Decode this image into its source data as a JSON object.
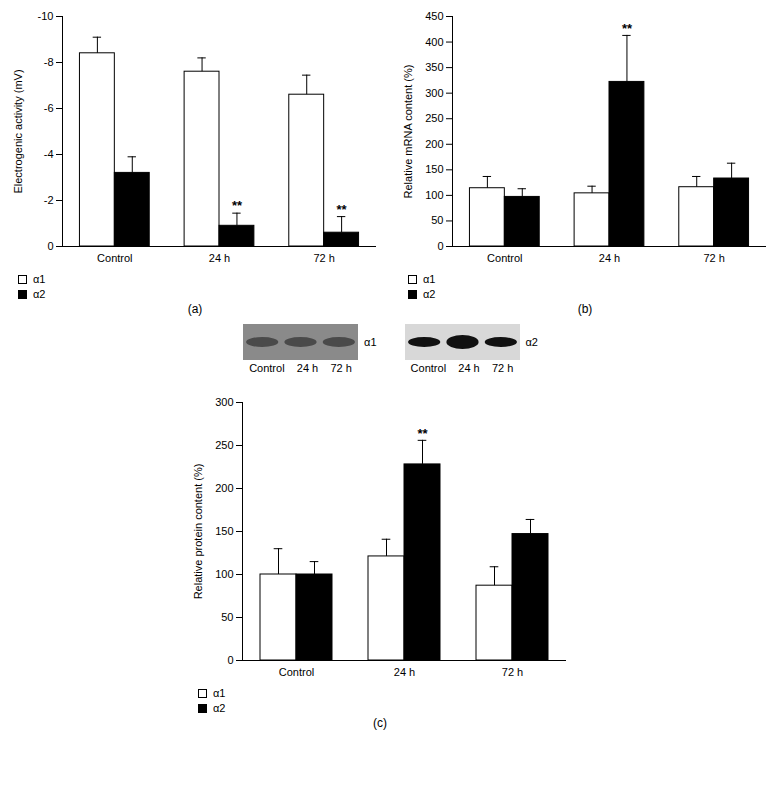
{
  "chart_data": [
    {
      "type": "bar",
      "caption": "(a)",
      "y_label": "Electrogenic activity (mV)",
      "categories": [
        "Control",
        "24 h",
        "72 h"
      ],
      "series": [
        {
          "name": "α1",
          "color": "#ffffff",
          "values": [
            -8.4,
            -7.6,
            -6.6
          ],
          "errors": [
            0.7,
            0.6,
            0.85
          ]
        },
        {
          "name": "α2",
          "color": "#000000",
          "values": [
            -3.2,
            -0.9,
            -0.6
          ],
          "errors": [
            0.7,
            0.55,
            0.7
          ]
        }
      ],
      "ylim": [
        0,
        -10
      ],
      "yticks": [
        0,
        -2,
        -4,
        -6,
        -8,
        -10
      ],
      "legend": "bottom-left",
      "annotations": [
        {
          "category": "24 h",
          "series": "α2",
          "text": "**"
        },
        {
          "category": "72 h",
          "series": "α2",
          "text": "**"
        }
      ]
    },
    {
      "type": "bar",
      "caption": "(b)",
      "y_label": "Relative mRNA content (%)",
      "categories": [
        "Control",
        "24 h",
        "72 h"
      ],
      "series": [
        {
          "name": "α1",
          "color": "#ffffff",
          "values": [
            114,
            104,
            116
          ],
          "errors": [
            23,
            14,
            21
          ]
        },
        {
          "name": "α2",
          "color": "#000000",
          "values": [
            97,
            322,
            133
          ],
          "errors": [
            16,
            91,
            30
          ]
        }
      ],
      "ylim": [
        0,
        450
      ],
      "yticks": [
        0,
        50,
        100,
        150,
        200,
        250,
        300,
        350,
        400,
        450
      ],
      "legend": "bottom-left",
      "annotations": [
        {
          "category": "24 h",
          "series": "α2",
          "text": "**"
        }
      ]
    },
    {
      "type": "bar",
      "caption": "(c)",
      "y_label": "Relative protein content (%)",
      "blots": [
        {
          "label": "α1",
          "lanes": [
            "Control",
            "24 h",
            "72 h"
          ]
        },
        {
          "label": "α2",
          "lanes": [
            "Control",
            "24 h",
            "72 h"
          ]
        }
      ],
      "categories": [
        "Control",
        "24 h",
        "72 h"
      ],
      "series": [
        {
          "name": "α1",
          "color": "#ffffff",
          "values": [
            100,
            121,
            87
          ],
          "errors": [
            30,
            20,
            22
          ]
        },
        {
          "name": "α2",
          "color": "#000000",
          "values": [
            100,
            228,
            147
          ],
          "errors": [
            15,
            28,
            17
          ]
        }
      ],
      "ylim": [
        0,
        300
      ],
      "yticks": [
        0,
        50,
        100,
        150,
        200,
        250,
        300
      ],
      "legend": "bottom-left",
      "annotations": [
        {
          "category": "24 h",
          "series": "α2",
          "text": "**"
        }
      ]
    }
  ]
}
